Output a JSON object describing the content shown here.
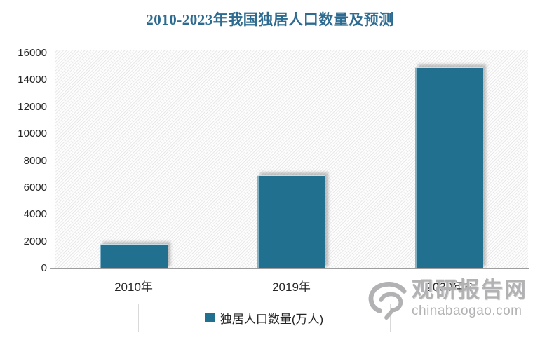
{
  "title": "2010-2023年我国独居人口数量及预测",
  "legend": {
    "label": "独居人口数量(万人)"
  },
  "watermark": {
    "logo": "guanyan-swirl-logo",
    "site_name": "观研报告网",
    "site_url": "chinabaogao.com"
  },
  "colors": {
    "bar": "#21708F",
    "title_text": "#2D6B90",
    "axis_line": "#9E9E9E",
    "tick_text": "#262626",
    "legend_border": "#D9D9D9",
    "watermark_gray": "#B2B2B4"
  },
  "chart_data": {
    "type": "bar",
    "title": "2010-2023年我国独居人口数量及预测",
    "categories": [
      "2010年",
      "2019年",
      "2030年E"
    ],
    "series": [
      {
        "name": "独居人口数量(万人)",
        "values": [
          1800,
          7000,
          15000
        ]
      }
    ],
    "unit": "万人",
    "xlabel": "",
    "ylabel": "",
    "ylim": [
      0,
      16000
    ],
    "yticks": [
      0,
      2000,
      4000,
      6000,
      8000,
      10000,
      12000,
      14000,
      16000
    ],
    "grid": false,
    "legend_position": "bottom",
    "plot_background": "diagonal-hatch"
  }
}
